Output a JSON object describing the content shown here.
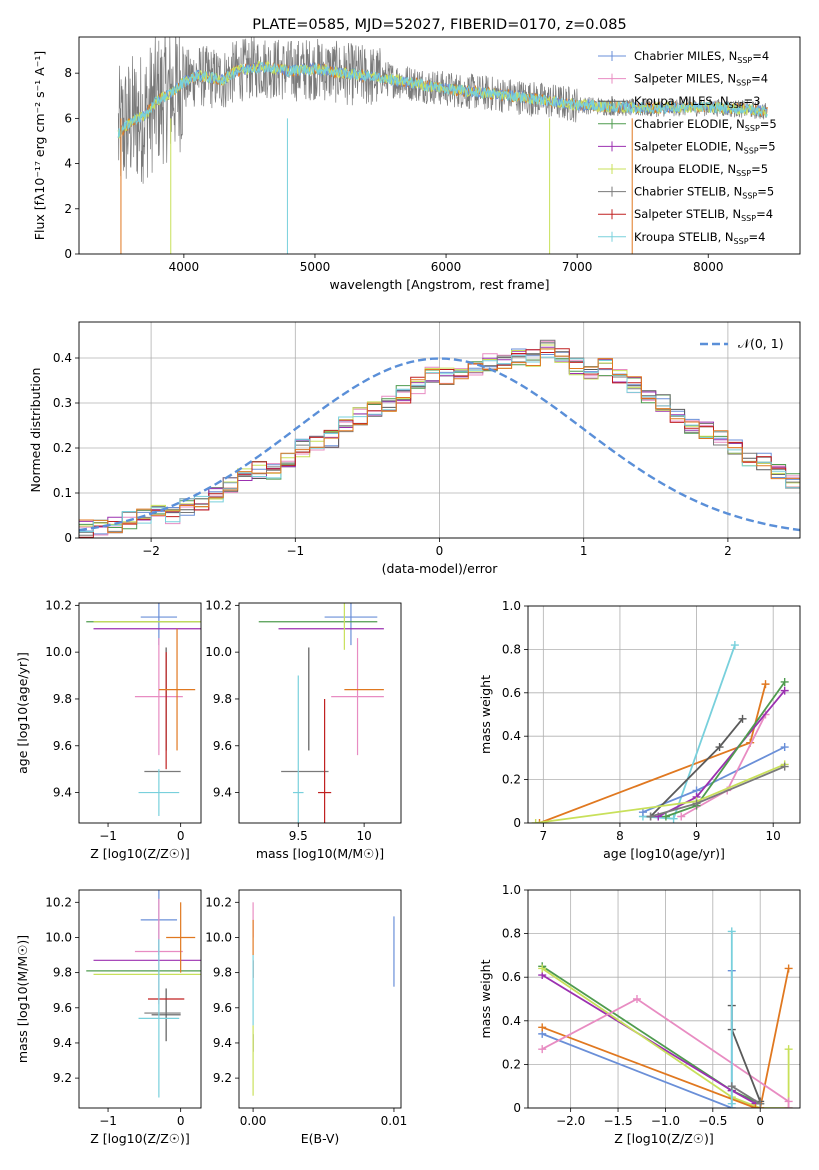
{
  "colors": {
    "Chabrier MILES": "#6a8fd8",
    "Salpeter MILES": "#e88cc2",
    "Kroupa MILES": "#5a5a5a",
    "Chabrier ELODIE": "#4f9b4f",
    "Salpeter ELODIE": "#9b30b0",
    "Kroupa ELODIE": "#c8e05a",
    "Chabrier STELIB": "#7a7a7a",
    "Salpeter STELIB": "#c02020",
    "Kroupa STELIB": "#78d0dc",
    "Orange": "#e07820",
    "gaussian": "#5a8fd8",
    "grid": "#b0b0b0"
  },
  "chart_data": [
    {
      "id": "spectrum",
      "type": "line",
      "title": "PLATE=0585, MJD=52027, FIBERID=0170, z=0.085",
      "xlabel": "wavelength [Angstrom, rest frame]",
      "ylabel": "Flux [fλ10⁻¹⁷ erg cm⁻² s⁻¹ A⁻¹]",
      "xlim": [
        3200,
        8700
      ],
      "ylim": [
        0,
        9.6
      ],
      "xticks": [
        4000,
        5000,
        6000,
        7000,
        8000
      ],
      "yticks": [
        0,
        2,
        4,
        6,
        8
      ],
      "grid": false,
      "legend_position": "top-right",
      "legend": [
        "Chabrier MILES, N_SSP=4",
        "Salpeter MILES, N_SSP=4",
        "Kroupa MILES, N_SSP=3",
        "Chabrier ELODIE, N_SSP=5",
        "Salpeter ELODIE, N_SSP=5",
        "Kroupa ELODIE, N_SSP=5",
        "Chabrier STELIB, N_SSP=5",
        "Salpeter STELIB, N_SSP=4",
        "Kroupa STELIB, N_SSP=4"
      ],
      "continuum_x": [
        3500,
        3600,
        3700,
        3800,
        3900,
        4000,
        4100,
        4200,
        4300,
        4400,
        4500,
        4600,
        4800,
        5000,
        5200,
        5500,
        6000,
        6500,
        7000,
        7300,
        7500,
        8000,
        8300,
        8450
      ],
      "continuum_y": [
        5.3,
        5.9,
        6.1,
        6.8,
        7.1,
        7.6,
        7.9,
        7.8,
        7.7,
        8.1,
        8.2,
        8.3,
        8.1,
        8.2,
        8.0,
        7.8,
        7.3,
        7.0,
        6.6,
        6.5,
        6.45,
        6.5,
        6.4,
        6.3
      ]
    },
    {
      "id": "residuals",
      "type": "bar",
      "xlabel": "(data-model)/error",
      "ylabel": "Normed distribution",
      "xlim": [
        -2.5,
        2.5
      ],
      "ylim": [
        0,
        0.48
      ],
      "xticks": [
        -2,
        -1,
        0,
        1,
        2
      ],
      "yticks": [
        0.0,
        0.1,
        0.2,
        0.3,
        0.4
      ],
      "grid": true,
      "legend_position": "top-right",
      "legend": [
        "𝒩(0, 1)"
      ],
      "bin_width": 0.1,
      "bin_start": -2.5,
      "mean_hist": [
        0.02,
        0.02,
        0.03,
        0.04,
        0.05,
        0.06,
        0.05,
        0.07,
        0.08,
        0.1,
        0.12,
        0.14,
        0.15,
        0.15,
        0.17,
        0.2,
        0.21,
        0.22,
        0.25,
        0.27,
        0.29,
        0.3,
        0.32,
        0.34,
        0.36,
        0.36,
        0.37,
        0.38,
        0.39,
        0.39,
        0.4,
        0.4,
        0.42,
        0.41,
        0.38,
        0.37,
        0.38,
        0.36,
        0.34,
        0.32,
        0.3,
        0.27,
        0.25,
        0.24,
        0.22,
        0.2,
        0.18,
        0.17,
        0.15,
        0.13,
        0.12,
        0.11,
        0.1,
        0.09,
        0.08,
        0.07,
        0.06,
        0.05,
        0.04,
        0.03
      ]
    },
    {
      "id": "z-age",
      "type": "scatter",
      "xlabel": "Z [log10(Z/Z☉)]",
      "ylabel": "age  [log10(age/yr)]",
      "xlim": [
        -1.4,
        0.28
      ],
      "ylim": [
        9.27,
        10.21
      ],
      "xticks": [
        -1,
        0
      ],
      "yticks": [
        9.4,
        9.6,
        9.8,
        10.0,
        10.2
      ],
      "points": [
        {
          "model": "Chabrier MILES",
          "x": -0.3,
          "y": 10.15,
          "xerr": 0.25,
          "yerr": 0.12
        },
        {
          "model": "Salpeter MILES",
          "x": -0.3,
          "y": 9.81,
          "xerr": 0.33,
          "yerr": 0.25
        },
        {
          "model": "Kroupa MILES",
          "x": -0.2,
          "y": 9.8,
          "xerr": 0.0,
          "yerr": 0.22
        },
        {
          "model": "Chabrier ELODIE",
          "x": -0.2,
          "y": 10.13,
          "xerr": 1.1,
          "yerr": 0.0
        },
        {
          "model": "Salpeter ELODIE",
          "x": -0.3,
          "y": 10.1,
          "xerr": 0.9,
          "yerr": 0.0
        },
        {
          "model": "Kroupa ELODIE",
          "x": -0.2,
          "y": 10.13,
          "xerr": 1.0,
          "yerr": 0.0
        },
        {
          "model": "Chabrier STELIB",
          "x": -0.25,
          "y": 9.49,
          "xerr": 0.25,
          "yerr": 0.0
        },
        {
          "model": "Salpeter STELIB",
          "x": -0.2,
          "y": 9.75,
          "xerr": 0.0,
          "yerr": 0.25
        },
        {
          "model": "Kroupa STELIB",
          "x": -0.3,
          "y": 9.4,
          "xerr": 0.28,
          "yerr": 0.1
        },
        {
          "model": "Orange",
          "x": -0.05,
          "y": 9.84,
          "xerr": 0.25,
          "yerr": 0.26
        }
      ]
    },
    {
      "id": "mass-age",
      "type": "scatter",
      "xlabel": "mass [log10(M/M☉)]",
      "ylabel": "",
      "xlim": [
        9.05,
        10.28
      ],
      "ylim": [
        9.27,
        10.21
      ],
      "xticks": [
        9.5,
        10.0
      ],
      "yticks": [
        9.4,
        9.6,
        9.8,
        10.0,
        10.2
      ],
      "points": [
        {
          "model": "Chabrier MILES",
          "x": 9.9,
          "y": 10.15,
          "xerr": 0.2,
          "yerr": 0.12
        },
        {
          "model": "Salpeter MILES",
          "x": 9.95,
          "y": 9.81,
          "xerr": 0.2,
          "yerr": 0.25
        },
        {
          "model": "Kroupa MILES",
          "x": 9.58,
          "y": 9.8,
          "xerr": 0.0,
          "yerr": 0.22
        },
        {
          "model": "Chabrier ELODIE",
          "x": 9.65,
          "y": 10.13,
          "xerr": 0.45,
          "yerr": 0.0
        },
        {
          "model": "Salpeter ELODIE",
          "x": 9.75,
          "y": 10.1,
          "xerr": 0.4,
          "yerr": 0.0
        },
        {
          "model": "Kroupa ELODIE",
          "x": 9.85,
          "y": 10.13,
          "xerr": 0.0,
          "yerr": 0.12
        },
        {
          "model": "Chabrier STELIB",
          "x": 9.55,
          "y": 9.49,
          "xerr": 0.18,
          "yerr": 0.0
        },
        {
          "model": "Salpeter STELIB",
          "x": 9.7,
          "y": 9.4,
          "xerr": 0.05,
          "yerr": 0.4
        },
        {
          "model": "Kroupa STELIB",
          "x": 9.5,
          "y": 9.4,
          "xerr": 0.04,
          "yerr": 0.5
        },
        {
          "model": "Orange",
          "x": 10.0,
          "y": 9.84,
          "xerr": 0.15,
          "yerr": 0.0
        }
      ]
    },
    {
      "id": "age-weight",
      "type": "line",
      "xlabel": "age  [log10(age/yr)]",
      "ylabel": "mass weight",
      "xlim": [
        6.8,
        10.35
      ],
      "ylim": [
        0,
        1.0
      ],
      "xticks": [
        7,
        8,
        9,
        10
      ],
      "yticks": [
        0.0,
        0.2,
        0.4,
        0.6,
        0.8,
        1.0
      ],
      "grid": true,
      "series": [
        {
          "model": "Orange",
          "x": [
            6.95,
            9.7,
            9.9
          ],
          "y": [
            0.0,
            0.37,
            0.64
          ]
        },
        {
          "model": "Kroupa STELIB",
          "x": [
            8.3,
            8.7,
            9.5
          ],
          "y": [
            0.03,
            0.02,
            0.82
          ]
        },
        {
          "model": "Chabrier MILES",
          "x": [
            8.3,
            9.0,
            10.15
          ],
          "y": [
            0.05,
            0.15,
            0.35
          ]
        },
        {
          "model": "Salpeter MILES",
          "x": [
            8.8,
            9.4,
            9.9
          ],
          "y": [
            0.03,
            0.15,
            0.5
          ]
        },
        {
          "model": "Kroupa MILES",
          "x": [
            8.4,
            9.3,
            9.6
          ],
          "y": [
            0.03,
            0.35,
            0.48
          ]
        },
        {
          "model": "Salpeter ELODIE",
          "x": [
            8.5,
            9.0,
            10.15
          ],
          "y": [
            0.03,
            0.12,
            0.61
          ]
        },
        {
          "model": "Chabrier ELODIE",
          "x": [
            8.6,
            9.0,
            10.15
          ],
          "y": [
            0.03,
            0.08,
            0.65
          ]
        },
        {
          "model": "Kroupa ELODIE",
          "x": [
            6.9,
            9.0,
            10.15
          ],
          "y": [
            0.0,
            0.1,
            0.27
          ]
        },
        {
          "model": "Chabrier STELIB",
          "x": [
            8.4,
            9.0,
            10.15
          ],
          "y": [
            0.03,
            0.09,
            0.26
          ]
        }
      ]
    },
    {
      "id": "z-mass",
      "type": "scatter",
      "xlabel": "Z [log10(Z/Z☉)]",
      "ylabel": "mass [log10(M/M☉)]",
      "xlim": [
        -1.4,
        0.28
      ],
      "ylim": [
        9.03,
        10.27
      ],
      "xticks": [
        -1,
        0
      ],
      "yticks": [
        9.2,
        9.4,
        9.6,
        9.8,
        10.0,
        10.2
      ],
      "points": [
        {
          "model": "Chabrier MILES",
          "x": -0.3,
          "y": 10.1,
          "xerr": 0.25,
          "yerr": 0.2
        },
        {
          "model": "Salpeter MILES",
          "x": -0.3,
          "y": 9.92,
          "xerr": 0.33,
          "yerr": 0.3
        },
        {
          "model": "Kroupa MILES",
          "x": -0.2,
          "y": 9.56,
          "xerr": 0.2,
          "yerr": 0.15
        },
        {
          "model": "Chabrier ELODIE",
          "x": -0.2,
          "y": 9.81,
          "xerr": 1.1,
          "yerr": 0.0
        },
        {
          "model": "Salpeter ELODIE",
          "x": -0.3,
          "y": 9.87,
          "xerr": 0.9,
          "yerr": 0.0
        },
        {
          "model": "Kroupa ELODIE",
          "x": -0.2,
          "y": 9.79,
          "xerr": 1.0,
          "yerr": 0.0
        },
        {
          "model": "Chabrier STELIB",
          "x": -0.25,
          "y": 9.57,
          "xerr": 0.25,
          "yerr": 0.0
        },
        {
          "model": "Salpeter STELIB",
          "x": -0.2,
          "y": 9.65,
          "xerr": 0.25,
          "yerr": 0.0
        },
        {
          "model": "Kroupa STELIB",
          "x": -0.3,
          "y": 9.54,
          "xerr": 0.28,
          "yerr": 0.45
        },
        {
          "model": "Orange",
          "x": 0.0,
          "y": 10.0,
          "xerr": 0.2,
          "yerr": 0.2
        }
      ]
    },
    {
      "id": "ebv-mass",
      "type": "scatter",
      "xlabel": "E(B-V)",
      "ylabel": "",
      "xlim": [
        -0.001,
        0.0105
      ],
      "ylim": [
        9.03,
        10.27
      ],
      "xticks": [
        0.0,
        0.01
      ],
      "yticks": [
        9.2,
        9.4,
        9.6,
        9.8,
        10.0,
        10.2
      ],
      "points": [
        {
          "model": "Chabrier MILES",
          "x": 0.01,
          "y": 9.92,
          "xerr": 0.0,
          "yerr": 0.2
        },
        {
          "model": "Salpeter MILES",
          "x": 0.0,
          "y": 10.1,
          "xerr": 0.0,
          "yerr": 0.1
        },
        {
          "model": "Salpeter STELIB",
          "x": 0.0,
          "y": 9.82,
          "xerr": 0.0,
          "yerr": 0.05
        },
        {
          "model": "Kroupa MILES",
          "x": 0.0,
          "y": 9.4,
          "xerr": 0.0,
          "yerr": 0.05
        },
        {
          "model": "Kroupa ELODIE",
          "x": 0.0,
          "y": 9.3,
          "xerr": 0.0,
          "yerr": 0.2
        },
        {
          "model": "Kroupa STELIB",
          "x": 0.0,
          "y": 9.7,
          "xerr": 0.0,
          "yerr": 0.2
        },
        {
          "model": "Orange",
          "x": 0.0,
          "y": 10.0,
          "xerr": 0.0,
          "yerr": 0.1
        }
      ]
    },
    {
      "id": "z-weight",
      "type": "line",
      "xlabel": "Z [log10(Z/Z☉)]",
      "ylabel": "mass weight",
      "xlim": [
        -2.45,
        0.42
      ],
      "ylim": [
        0,
        1.0
      ],
      "xticks": [
        -2.0,
        -1.5,
        -1.0,
        -0.5,
        0.0
      ],
      "yticks": [
        0.0,
        0.2,
        0.4,
        0.6,
        0.8,
        1.0
      ],
      "grid": true,
      "series": [
        {
          "model": "Chabrier ELODIE",
          "x": [
            -2.3,
            -0.3,
            0.0
          ],
          "y": [
            0.65,
            0.08,
            0.02
          ]
        },
        {
          "model": "Salpeter ELODIE",
          "x": [
            -2.3,
            -0.3,
            -0.05
          ],
          "y": [
            0.61,
            0.08,
            0.02
          ]
        },
        {
          "model": "Kroupa ELODIE",
          "x": [
            -2.3,
            -0.3,
            0.0,
            0.3,
            0.3
          ],
          "y": [
            0.64,
            0.05,
            0.0,
            0.0,
            0.27
          ]
        },
        {
          "model": "Chabrier MILES",
          "x": [
            -2.3,
            -0.3,
            -0.3
          ],
          "y": [
            0.34,
            0.0,
            0.63
          ]
        },
        {
          "model": "Orange",
          "x": [
            -2.3,
            -0.05,
            0.0,
            0.3
          ],
          "y": [
            0.37,
            0.0,
            0.0,
            0.64
          ]
        },
        {
          "model": "Salpeter MILES",
          "x": [
            -2.3,
            -1.3,
            0.3,
            0.3
          ],
          "y": [
            0.27,
            0.5,
            0.03,
            0.0
          ]
        },
        {
          "model": "Kroupa MILES",
          "x": [
            -0.3,
            -0.3,
            0.0
          ],
          "y": [
            0.47,
            0.36,
            0.03
          ]
        },
        {
          "model": "Kroupa STELIB",
          "x": [
            -0.3,
            -0.3
          ],
          "y": [
            0.81,
            0.02
          ]
        },
        {
          "model": "Chabrier STELIB",
          "x": [
            -0.3,
            0.0
          ],
          "y": [
            0.1,
            0.02
          ]
        }
      ]
    }
  ]
}
